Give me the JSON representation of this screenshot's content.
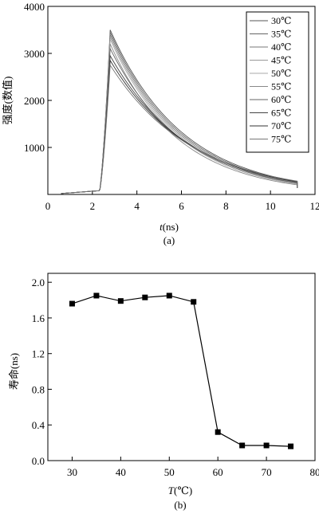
{
  "chart_data": [
    {
      "id": "a",
      "type": "line",
      "caption": "(a)",
      "xlabel_italic": "t",
      "xlabel_rest": "(ns)",
      "ylabel": "强度(数值)",
      "xlim": [
        0,
        12
      ],
      "ylim": [
        0,
        4000
      ],
      "x_ticks": [
        "0",
        "2",
        "4",
        "6",
        "8",
        "10",
        "12"
      ],
      "y_ticks": [
        "1000",
        "2000",
        "3000",
        "4000"
      ],
      "legend_position": "top-right",
      "series": [
        {
          "name": "30℃",
          "peak": 3500,
          "tau": 3.3,
          "color": "#555555"
        },
        {
          "name": "35℃",
          "peak": 3450,
          "tau": 3.25,
          "color": "#666666"
        },
        {
          "name": "40℃",
          "peak": 3400,
          "tau": 3.2,
          "color": "#777777"
        },
        {
          "name": "45℃",
          "peak": 3350,
          "tau": 3.15,
          "color": "#999999"
        },
        {
          "name": "50℃",
          "peak": 3300,
          "tau": 3.1,
          "color": "#aaaaaa"
        },
        {
          "name": "55℃",
          "peak": 3200,
          "tau": 3.05,
          "color": "#888888"
        },
        {
          "name": "60℃",
          "peak": 3100,
          "tau": 3.3,
          "color": "#666666"
        },
        {
          "name": "65℃",
          "peak": 2950,
          "tau": 3.5,
          "color": "#444444"
        },
        {
          "name": "70℃",
          "peak": 2850,
          "tau": 3.6,
          "color": "#333333"
        },
        {
          "name": "75℃",
          "peak": 2750,
          "tau": 3.7,
          "color": "#777777"
        }
      ],
      "rise_start": 2.3,
      "peak_x": 2.8,
      "x_end": 11.2,
      "baseline": 20
    },
    {
      "id": "b",
      "type": "line",
      "caption": "(b)",
      "xlabel_italic": "T",
      "xlabel_rest": "(℃)",
      "ylabel": "寿命(ns)",
      "xlim": [
        25,
        80
      ],
      "ylim": [
        0,
        2.1
      ],
      "x_ticks": [
        "30",
        "40",
        "50",
        "60",
        "70",
        "80"
      ],
      "y_ticks": [
        "0.0",
        "0.4",
        "0.8",
        "1.2",
        "1.6",
        "2.0"
      ],
      "x": [
        30,
        35,
        40,
        45,
        50,
        55,
        60,
        65,
        70,
        75
      ],
      "y": [
        1.76,
        1.85,
        1.79,
        1.83,
        1.85,
        1.78,
        0.32,
        0.17,
        0.17,
        0.16
      ]
    }
  ]
}
